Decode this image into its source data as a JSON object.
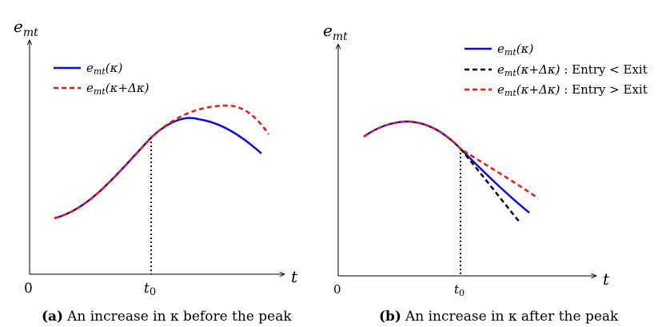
{
  "panel_a": {
    "y_axis_label": "e",
    "y_axis_sub": "mt",
    "x_axis_label": "t",
    "origin_label": "0",
    "t0_label": "t",
    "t0_sub": "0",
    "legend": [
      {
        "base": "e",
        "sub": "mt",
        "arg": "(κ)",
        "color": "#0b0bd6",
        "dash": "solid"
      },
      {
        "base": "e",
        "sub": "mt",
        "arg": "(κ+Δκ)",
        "color": "#e31a1a",
        "dash": "dashed"
      }
    ],
    "caption_label": "(a)",
    "caption_text": "An increase in κ before the peak"
  },
  "panel_b": {
    "y_axis_label": "e",
    "y_axis_sub": "mt",
    "x_axis_label": "t",
    "origin_label": "0",
    "t0_label": "t",
    "t0_sub": "0",
    "legend": [
      {
        "base": "e",
        "sub": "mt",
        "arg": "(κ)",
        "suffix": "",
        "color": "#0b0bd6",
        "dash": "solid"
      },
      {
        "base": "e",
        "sub": "mt",
        "arg": "(κ+Δκ)",
        "suffix": " : Entry < Exit",
        "color": "#000000",
        "dash": "dashed"
      },
      {
        "base": "e",
        "sub": "mt",
        "arg": "(κ+Δκ)",
        "suffix": " : Entry > Exit",
        "color": "#e31a1a",
        "dash": "dashed"
      }
    ],
    "caption_label": "(b)",
    "caption_text": "An increase in κ after the peak"
  },
  "colors": {
    "blue": "#0b0bd6",
    "red": "#e31a1a",
    "black": "#000000"
  }
}
